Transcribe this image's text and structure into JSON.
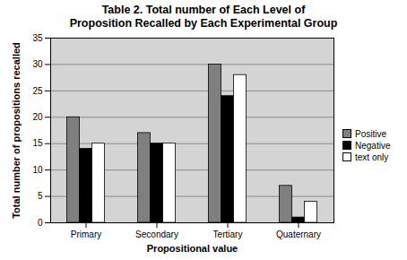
{
  "chart_data": {
    "type": "bar",
    "title": "Table 2.  Total number of Each Level of\nProposition Recalled by Each Experimental Group",
    "x_label": "Propositional value",
    "y_label": "Total number of propositions recalled",
    "categories": [
      "Primary",
      "Secondary",
      "Tertiary",
      "Quaternary"
    ],
    "series": [
      {
        "name": "Positive",
        "color": "#7f7f7f",
        "values": [
          20,
          17,
          30,
          7
        ]
      },
      {
        "name": "Negative",
        "color": "#000000",
        "values": [
          14,
          15,
          24,
          1
        ]
      },
      {
        "name": "text only",
        "color": "#ffffff",
        "values": [
          15,
          15,
          28,
          4
        ]
      }
    ],
    "ylim": [
      0,
      35
    ],
    "yticks": [
      0,
      5,
      10,
      15,
      20,
      25,
      30,
      35
    ],
    "grid": true,
    "legend": "right"
  }
}
